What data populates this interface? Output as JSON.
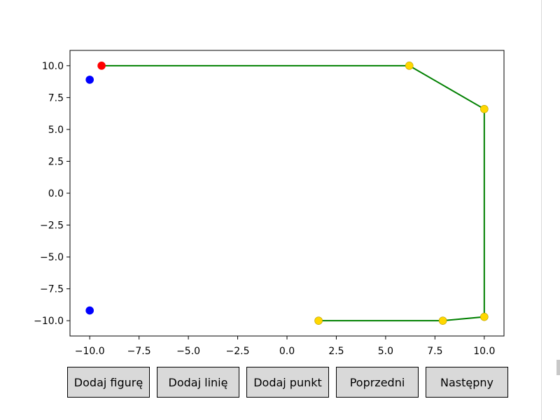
{
  "chart_data": {
    "type": "line",
    "title": "",
    "xlabel": "",
    "ylabel": "",
    "xlim": [
      -11.0,
      11.0
    ],
    "ylim": [
      -11.2,
      11.2
    ],
    "xticks": [
      -10.0,
      -7.5,
      -5.0,
      -2.5,
      0.0,
      2.5,
      5.0,
      7.5,
      10.0
    ],
    "yticks": [
      -10.0,
      -7.5,
      -5.0,
      -2.5,
      0.0,
      2.5,
      5.0,
      7.5,
      10.0
    ],
    "xtick_labels": [
      "−10.0",
      "−7.5",
      "−5.0",
      "−2.5",
      "0.0",
      "2.5",
      "5.0",
      "7.5",
      "10.0"
    ],
    "ytick_labels": [
      "10.0",
      "7.5",
      "5.0",
      "2.5",
      "0.0",
      "−2.5",
      "−5.0",
      "−7.5",
      "−10.0"
    ],
    "grid": false,
    "series": [
      {
        "kind": "line",
        "color": "#008000",
        "points": [
          [
            -9.4,
            10.0
          ],
          [
            6.2,
            10.0
          ],
          [
            10.0,
            6.6
          ],
          [
            10.0,
            -9.7
          ],
          [
            7.9,
            -10.0
          ],
          [
            1.6,
            -10.0
          ]
        ]
      },
      {
        "kind": "points",
        "color": "#ffd700",
        "points": [
          [
            6.2,
            10.0
          ],
          [
            10.0,
            6.6
          ],
          [
            10.0,
            -9.7
          ],
          [
            7.9,
            -10.0
          ],
          [
            1.6,
            -10.0
          ]
        ]
      },
      {
        "kind": "points",
        "color": "#ff0000",
        "points": [
          [
            -9.4,
            10.0
          ]
        ]
      },
      {
        "kind": "points",
        "color": "#0000ff",
        "points": [
          [
            -10.0,
            8.9
          ],
          [
            -10.0,
            -9.2
          ]
        ]
      }
    ]
  },
  "buttons": {
    "add_figure": "Dodaj figurę",
    "add_line": "Dodaj linię",
    "add_point": "Dodaj punkt",
    "previous": "Poprzedni",
    "next": "Następny"
  }
}
